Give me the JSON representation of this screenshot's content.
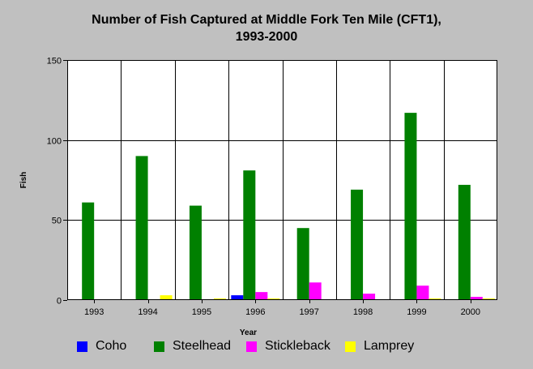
{
  "chart_data": {
    "type": "bar",
    "title": [
      "Number of Fish Captured at Middle Fork Ten Mile (CFT1),",
      "1993-2000"
    ],
    "xlabel": "Year",
    "ylabel": "Fish",
    "ylim": [
      0,
      150
    ],
    "yticks": [
      0,
      50,
      100,
      150
    ],
    "categories": [
      "1993",
      "1994",
      "1995",
      "1996",
      "1997",
      "1998",
      "1999",
      "2000"
    ],
    "series": [
      {
        "name": "Coho",
        "color": "#0000ff",
        "values": [
          0,
          0,
          0,
          3,
          0,
          0,
          0,
          0
        ]
      },
      {
        "name": "Steelhead",
        "color": "#008000",
        "values": [
          61,
          90,
          59,
          81,
          45,
          69,
          117,
          72
        ]
      },
      {
        "name": "Stickleback",
        "color": "#ff00ff",
        "values": [
          0,
          0,
          0,
          5,
          11,
          4,
          9,
          2
        ]
      },
      {
        "name": "Lamprey",
        "color": "#ffff00",
        "values": [
          0,
          3,
          1,
          1,
          0,
          0,
          1,
          1
        ]
      }
    ],
    "grid": true,
    "legend": "bottom"
  }
}
